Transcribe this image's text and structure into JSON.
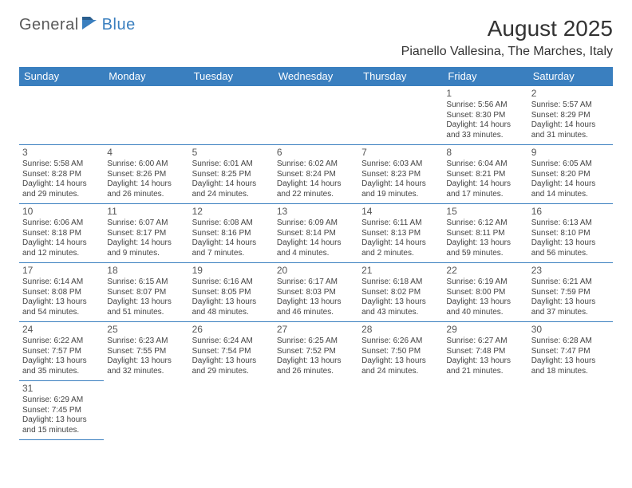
{
  "logo": {
    "part1": "General",
    "part2": "Blue"
  },
  "title": "August 2025",
  "location": "Pianello Vallesina, The Marches, Italy",
  "header_bg": "#3a7fbf",
  "header_fg": "#ffffff",
  "border_color": "#3a7fbf",
  "day_headers": [
    "Sunday",
    "Monday",
    "Tuesday",
    "Wednesday",
    "Thursday",
    "Friday",
    "Saturday"
  ],
  "weeks": [
    [
      null,
      null,
      null,
      null,
      null,
      {
        "n": "1",
        "sr": "Sunrise: 5:56 AM",
        "ss": "Sunset: 8:30 PM",
        "d1": "Daylight: 14 hours",
        "d2": "and 33 minutes."
      },
      {
        "n": "2",
        "sr": "Sunrise: 5:57 AM",
        "ss": "Sunset: 8:29 PM",
        "d1": "Daylight: 14 hours",
        "d2": "and 31 minutes."
      }
    ],
    [
      {
        "n": "3",
        "sr": "Sunrise: 5:58 AM",
        "ss": "Sunset: 8:28 PM",
        "d1": "Daylight: 14 hours",
        "d2": "and 29 minutes."
      },
      {
        "n": "4",
        "sr": "Sunrise: 6:00 AM",
        "ss": "Sunset: 8:26 PM",
        "d1": "Daylight: 14 hours",
        "d2": "and 26 minutes."
      },
      {
        "n": "5",
        "sr": "Sunrise: 6:01 AM",
        "ss": "Sunset: 8:25 PM",
        "d1": "Daylight: 14 hours",
        "d2": "and 24 minutes."
      },
      {
        "n": "6",
        "sr": "Sunrise: 6:02 AM",
        "ss": "Sunset: 8:24 PM",
        "d1": "Daylight: 14 hours",
        "d2": "and 22 minutes."
      },
      {
        "n": "7",
        "sr": "Sunrise: 6:03 AM",
        "ss": "Sunset: 8:23 PM",
        "d1": "Daylight: 14 hours",
        "d2": "and 19 minutes."
      },
      {
        "n": "8",
        "sr": "Sunrise: 6:04 AM",
        "ss": "Sunset: 8:21 PM",
        "d1": "Daylight: 14 hours",
        "d2": "and 17 minutes."
      },
      {
        "n": "9",
        "sr": "Sunrise: 6:05 AM",
        "ss": "Sunset: 8:20 PM",
        "d1": "Daylight: 14 hours",
        "d2": "and 14 minutes."
      }
    ],
    [
      {
        "n": "10",
        "sr": "Sunrise: 6:06 AM",
        "ss": "Sunset: 8:18 PM",
        "d1": "Daylight: 14 hours",
        "d2": "and 12 minutes."
      },
      {
        "n": "11",
        "sr": "Sunrise: 6:07 AM",
        "ss": "Sunset: 8:17 PM",
        "d1": "Daylight: 14 hours",
        "d2": "and 9 minutes."
      },
      {
        "n": "12",
        "sr": "Sunrise: 6:08 AM",
        "ss": "Sunset: 8:16 PM",
        "d1": "Daylight: 14 hours",
        "d2": "and 7 minutes."
      },
      {
        "n": "13",
        "sr": "Sunrise: 6:09 AM",
        "ss": "Sunset: 8:14 PM",
        "d1": "Daylight: 14 hours",
        "d2": "and 4 minutes."
      },
      {
        "n": "14",
        "sr": "Sunrise: 6:11 AM",
        "ss": "Sunset: 8:13 PM",
        "d1": "Daylight: 14 hours",
        "d2": "and 2 minutes."
      },
      {
        "n": "15",
        "sr": "Sunrise: 6:12 AM",
        "ss": "Sunset: 8:11 PM",
        "d1": "Daylight: 13 hours",
        "d2": "and 59 minutes."
      },
      {
        "n": "16",
        "sr": "Sunrise: 6:13 AM",
        "ss": "Sunset: 8:10 PM",
        "d1": "Daylight: 13 hours",
        "d2": "and 56 minutes."
      }
    ],
    [
      {
        "n": "17",
        "sr": "Sunrise: 6:14 AM",
        "ss": "Sunset: 8:08 PM",
        "d1": "Daylight: 13 hours",
        "d2": "and 54 minutes."
      },
      {
        "n": "18",
        "sr": "Sunrise: 6:15 AM",
        "ss": "Sunset: 8:07 PM",
        "d1": "Daylight: 13 hours",
        "d2": "and 51 minutes."
      },
      {
        "n": "19",
        "sr": "Sunrise: 6:16 AM",
        "ss": "Sunset: 8:05 PM",
        "d1": "Daylight: 13 hours",
        "d2": "and 48 minutes."
      },
      {
        "n": "20",
        "sr": "Sunrise: 6:17 AM",
        "ss": "Sunset: 8:03 PM",
        "d1": "Daylight: 13 hours",
        "d2": "and 46 minutes."
      },
      {
        "n": "21",
        "sr": "Sunrise: 6:18 AM",
        "ss": "Sunset: 8:02 PM",
        "d1": "Daylight: 13 hours",
        "d2": "and 43 minutes."
      },
      {
        "n": "22",
        "sr": "Sunrise: 6:19 AM",
        "ss": "Sunset: 8:00 PM",
        "d1": "Daylight: 13 hours",
        "d2": "and 40 minutes."
      },
      {
        "n": "23",
        "sr": "Sunrise: 6:21 AM",
        "ss": "Sunset: 7:59 PM",
        "d1": "Daylight: 13 hours",
        "d2": "and 37 minutes."
      }
    ],
    [
      {
        "n": "24",
        "sr": "Sunrise: 6:22 AM",
        "ss": "Sunset: 7:57 PM",
        "d1": "Daylight: 13 hours",
        "d2": "and 35 minutes."
      },
      {
        "n": "25",
        "sr": "Sunrise: 6:23 AM",
        "ss": "Sunset: 7:55 PM",
        "d1": "Daylight: 13 hours",
        "d2": "and 32 minutes."
      },
      {
        "n": "26",
        "sr": "Sunrise: 6:24 AM",
        "ss": "Sunset: 7:54 PM",
        "d1": "Daylight: 13 hours",
        "d2": "and 29 minutes."
      },
      {
        "n": "27",
        "sr": "Sunrise: 6:25 AM",
        "ss": "Sunset: 7:52 PM",
        "d1": "Daylight: 13 hours",
        "d2": "and 26 minutes."
      },
      {
        "n": "28",
        "sr": "Sunrise: 6:26 AM",
        "ss": "Sunset: 7:50 PM",
        "d1": "Daylight: 13 hours",
        "d2": "and 24 minutes."
      },
      {
        "n": "29",
        "sr": "Sunrise: 6:27 AM",
        "ss": "Sunset: 7:48 PM",
        "d1": "Daylight: 13 hours",
        "d2": "and 21 minutes."
      },
      {
        "n": "30",
        "sr": "Sunrise: 6:28 AM",
        "ss": "Sunset: 7:47 PM",
        "d1": "Daylight: 13 hours",
        "d2": "and 18 minutes."
      }
    ],
    [
      {
        "n": "31",
        "sr": "Sunrise: 6:29 AM",
        "ss": "Sunset: 7:45 PM",
        "d1": "Daylight: 13 hours",
        "d2": "and 15 minutes."
      },
      null,
      null,
      null,
      null,
      null,
      null
    ]
  ]
}
